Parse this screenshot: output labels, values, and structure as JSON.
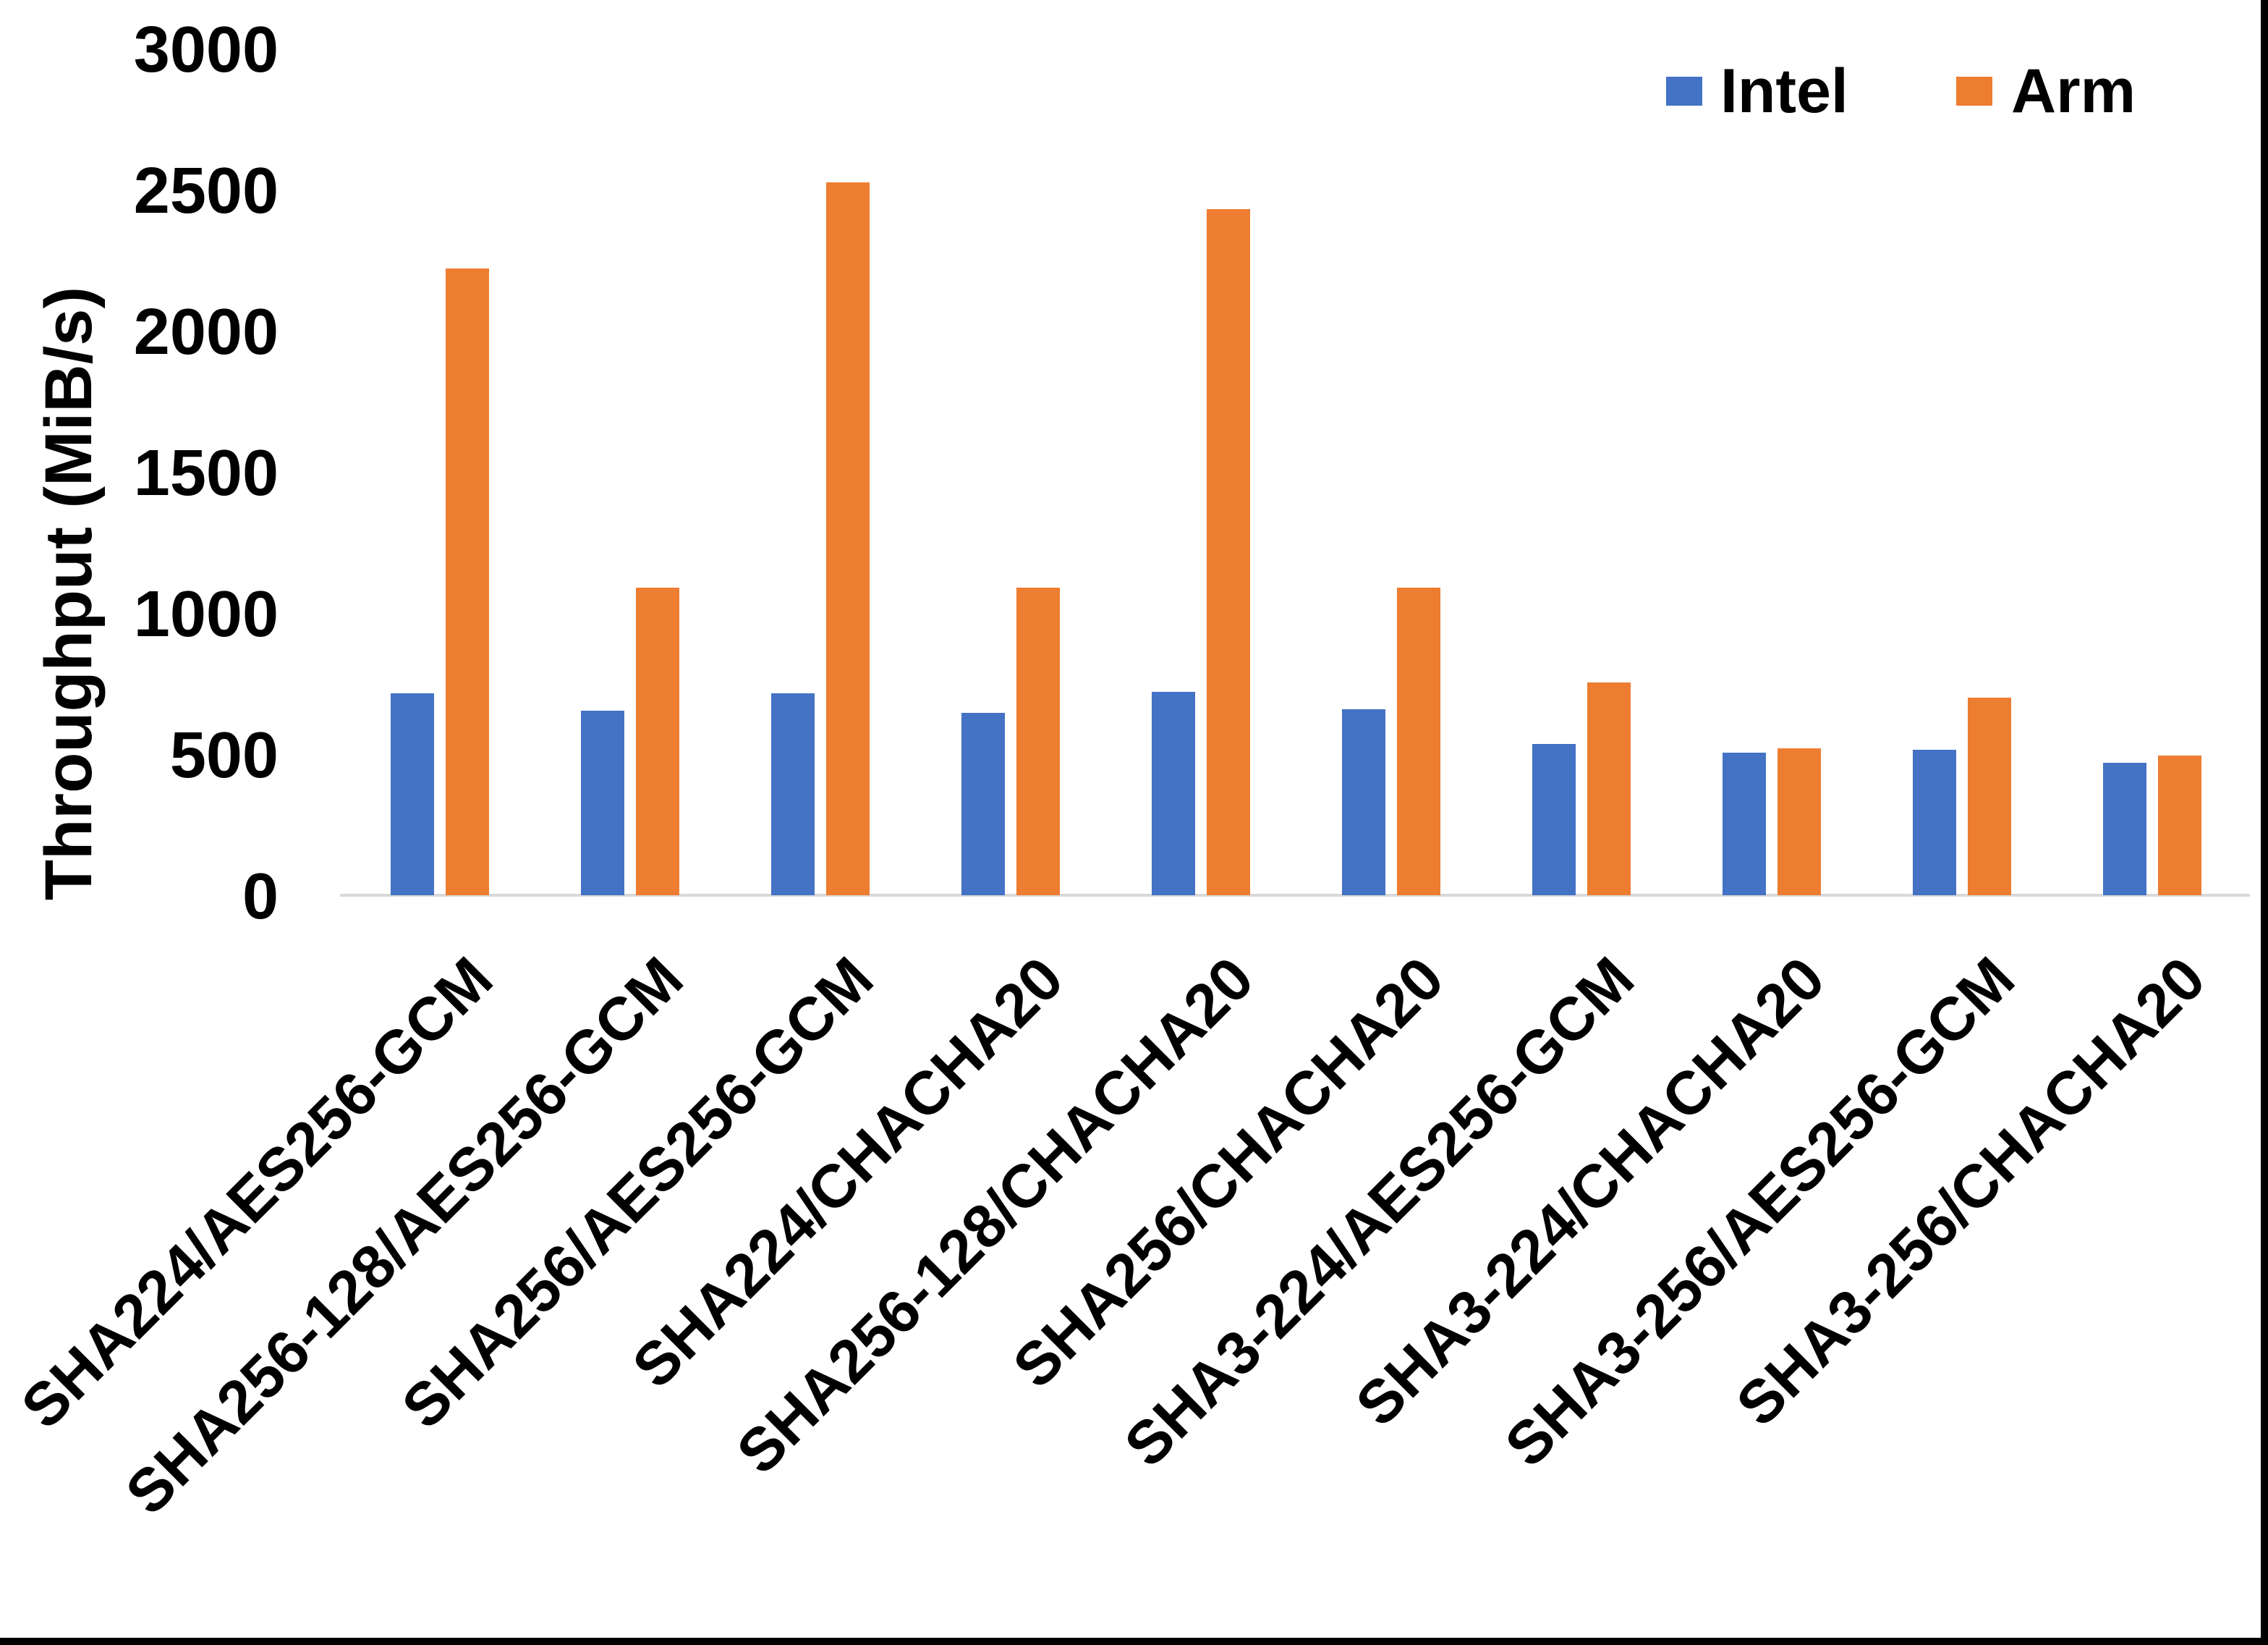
{
  "chart_data": {
    "type": "bar",
    "title": "",
    "xlabel": "",
    "ylabel": "Throughput (MiB/s)",
    "ylim": [
      0,
      3000
    ],
    "yticks": [
      0,
      500,
      1000,
      1500,
      2000,
      2500,
      3000
    ],
    "grid": false,
    "legend_position": "top-right",
    "categories": [
      "SHA224/AES256-GCM",
      "SHA256-128/AES256-GCM",
      "SHA256/AES256-GCM",
      "SHA224/CHACHA20",
      "SHA256-128/CHACHA20",
      "SHA256/CHACHA20",
      "SHA3-224/AES256-GCM",
      "SHA3-224/CHACHA20",
      "SHA3-256/AES256-GCM",
      "SHA3-256/CHACHA20"
    ],
    "series": [
      {
        "name": "Intel",
        "color": "#4472C4",
        "values": [
          715,
          655,
          715,
          645,
          720,
          660,
          535,
          505,
          515,
          470
        ]
      },
      {
        "name": "Arm",
        "color": "#ED7D31",
        "values": [
          2220,
          1090,
          2525,
          1090,
          2430,
          1090,
          755,
          520,
          700,
          495
        ]
      }
    ]
  },
  "frame": {
    "background": "#FFFFFF",
    "axis_line_color": "#D9D9D9",
    "border_color": "#000000",
    "text_color": "#000000"
  }
}
